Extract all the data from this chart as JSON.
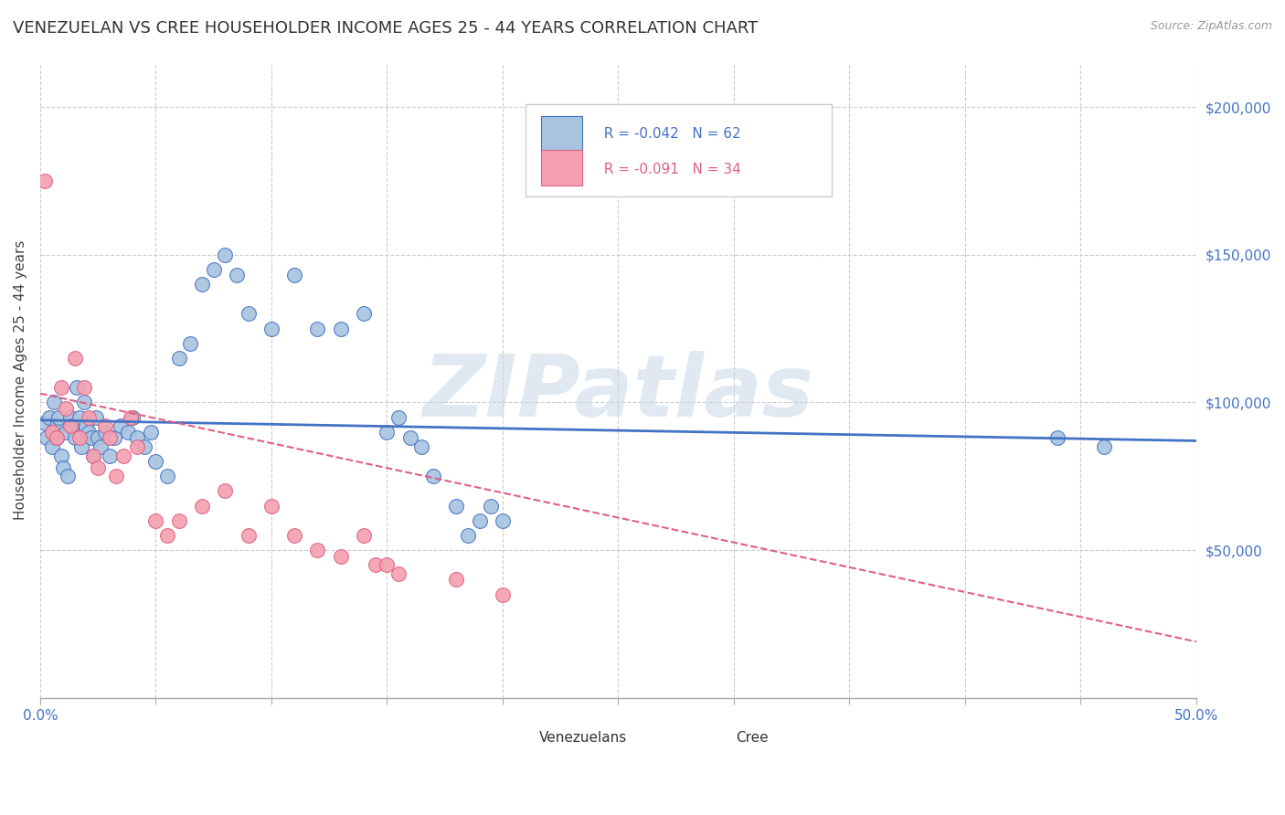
{
  "title": "VENEZUELAN VS CREE HOUSEHOLDER INCOME AGES 25 - 44 YEARS CORRELATION CHART",
  "source": "Source: ZipAtlas.com",
  "ylabel": "Householder Income Ages 25 - 44 years",
  "xlim": [
    0.0,
    50.0
  ],
  "ylim": [
    0,
    215000
  ],
  "venezuelan_color": "#a8c4e0",
  "cree_color": "#f4a0b0",
  "venezuelan_line_color": "#4472c4",
  "cree_line_color": "#e06080",
  "legend_R_venezuelan": "R = -0.042",
  "legend_N_venezuelan": "N = 62",
  "legend_R_cree": "R = -0.091",
  "legend_N_cree": "N = 34",
  "watermark": "ZIPatlas",
  "watermark_color": "#c8d8e8",
  "background_color": "#ffffff",
  "grid_color": "#cccccc",
  "venezuelan_x": [
    0.2,
    0.3,
    0.4,
    0.5,
    0.5,
    0.6,
    0.7,
    0.7,
    0.8,
    0.9,
    1.0,
    1.1,
    1.2,
    1.3,
    1.4,
    1.5,
    1.6,
    1.7,
    1.8,
    1.9,
    2.0,
    2.1,
    2.2,
    2.3,
    2.4,
    2.5,
    2.6,
    2.8,
    3.0,
    3.2,
    3.5,
    3.8,
    4.0,
    4.2,
    4.5,
    4.8,
    5.0,
    5.5,
    6.0,
    6.5,
    7.0,
    7.5,
    8.0,
    8.5,
    9.0,
    10.0,
    11.0,
    12.0,
    13.0,
    14.0,
    15.0,
    15.5,
    16.0,
    16.5,
    17.0,
    18.0,
    18.5,
    19.0,
    19.5,
    20.0,
    44.0,
    46.0
  ],
  "venezuelan_y": [
    93000,
    88000,
    95000,
    90000,
    85000,
    100000,
    92000,
    88000,
    95000,
    82000,
    78000,
    90000,
    75000,
    95000,
    92000,
    88000,
    105000,
    95000,
    85000,
    100000,
    92000,
    90000,
    88000,
    82000,
    95000,
    88000,
    85000,
    90000,
    82000,
    88000,
    92000,
    90000,
    95000,
    88000,
    85000,
    90000,
    80000,
    75000,
    115000,
    120000,
    140000,
    145000,
    150000,
    143000,
    130000,
    125000,
    143000,
    125000,
    125000,
    130000,
    90000,
    95000,
    88000,
    85000,
    75000,
    65000,
    55000,
    60000,
    65000,
    60000,
    88000,
    85000
  ],
  "cree_x": [
    0.2,
    0.5,
    0.7,
    0.9,
    1.1,
    1.3,
    1.5,
    1.7,
    1.9,
    2.1,
    2.3,
    2.5,
    2.8,
    3.0,
    3.3,
    3.6,
    3.9,
    4.2,
    5.0,
    5.5,
    6.0,
    7.0,
    8.0,
    9.0,
    10.0,
    11.0,
    12.0,
    13.0,
    14.0,
    14.5,
    15.0,
    15.5,
    18.0,
    20.0
  ],
  "cree_y": [
    175000,
    90000,
    88000,
    105000,
    98000,
    92000,
    115000,
    88000,
    105000,
    95000,
    82000,
    78000,
    92000,
    88000,
    75000,
    82000,
    95000,
    85000,
    60000,
    55000,
    60000,
    65000,
    70000,
    55000,
    65000,
    55000,
    50000,
    48000,
    55000,
    45000,
    45000,
    42000,
    40000,
    35000
  ],
  "venezuelan_trend_x": [
    0.0,
    50.0
  ],
  "venezuelan_trend_y": [
    94000,
    87000
  ],
  "cree_trend_x": [
    0.0,
    50.0
  ],
  "cree_trend_y": [
    103000,
    19000
  ]
}
